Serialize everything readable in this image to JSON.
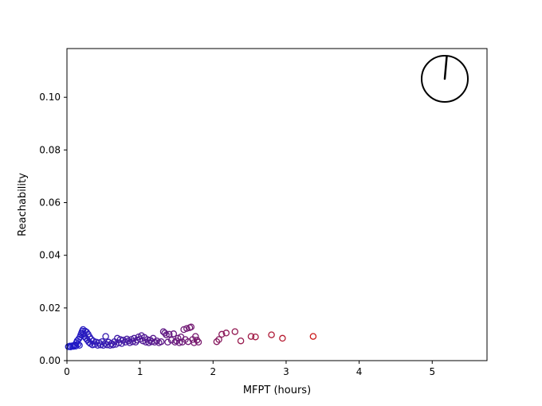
{
  "chart_data": {
    "type": "scatter",
    "title": "",
    "xlabel": "MFPT (hours)",
    "ylabel": "Reachability",
    "xlim": [
      0,
      5.75
    ],
    "ylim": [
      0,
      0.1185
    ],
    "x_ticks": [
      0,
      1,
      2,
      3,
      4,
      5
    ],
    "x_tick_labels": [
      "0",
      "1",
      "2",
      "3",
      "4",
      "5"
    ],
    "y_ticks": [
      0.0,
      0.02,
      0.04,
      0.06,
      0.08,
      0.1
    ],
    "y_tick_labels": [
      "0.00",
      "0.02",
      "0.04",
      "0.06",
      "0.08",
      "0.10"
    ],
    "grid": false,
    "legend": "none",
    "marker": "hollow-circle",
    "color_gradient": {
      "low": "#1a1acc",
      "high": "#cc1a1a",
      "mapped_to": "x"
    },
    "clock_inset": {
      "position": "top-right",
      "hand_angle_deg": 5
    },
    "points": [
      [
        0.02,
        0.0053
      ],
      [
        0.04,
        0.0055
      ],
      [
        0.05,
        0.0052
      ],
      [
        0.07,
        0.0056
      ],
      [
        0.09,
        0.0054
      ],
      [
        0.1,
        0.0058
      ],
      [
        0.11,
        0.006
      ],
      [
        0.12,
        0.0055
      ],
      [
        0.13,
        0.0068
      ],
      [
        0.14,
        0.0075
      ],
      [
        0.15,
        0.0062
      ],
      [
        0.16,
        0.0082
      ],
      [
        0.17,
        0.0058
      ],
      [
        0.18,
        0.009
      ],
      [
        0.19,
        0.0098
      ],
      [
        0.2,
        0.0105
      ],
      [
        0.21,
        0.0112
      ],
      [
        0.22,
        0.0118
      ],
      [
        0.23,
        0.01
      ],
      [
        0.24,
        0.0092
      ],
      [
        0.25,
        0.0112
      ],
      [
        0.26,
        0.0085
      ],
      [
        0.27,
        0.0108
      ],
      [
        0.28,
        0.0078
      ],
      [
        0.29,
        0.01
      ],
      [
        0.3,
        0.007
      ],
      [
        0.31,
        0.009
      ],
      [
        0.32,
        0.0065
      ],
      [
        0.33,
        0.0082
      ],
      [
        0.35,
        0.006
      ],
      [
        0.36,
        0.0075
      ],
      [
        0.38,
        0.0062
      ],
      [
        0.4,
        0.007
      ],
      [
        0.42,
        0.0058
      ],
      [
        0.44,
        0.0068
      ],
      [
        0.46,
        0.006
      ],
      [
        0.48,
        0.0072
      ],
      [
        0.5,
        0.0058
      ],
      [
        0.52,
        0.0065
      ],
      [
        0.53,
        0.0092
      ],
      [
        0.55,
        0.006
      ],
      [
        0.57,
        0.007
      ],
      [
        0.59,
        0.0058
      ],
      [
        0.61,
        0.0065
      ],
      [
        0.63,
        0.006
      ],
      [
        0.65,
        0.0072
      ],
      [
        0.67,
        0.0062
      ],
      [
        0.69,
        0.0085
      ],
      [
        0.71,
        0.0068
      ],
      [
        0.73,
        0.008
      ],
      [
        0.75,
        0.0065
      ],
      [
        0.77,
        0.0078
      ],
      [
        0.8,
        0.007
      ],
      [
        0.82,
        0.0082
      ],
      [
        0.84,
        0.0075
      ],
      [
        0.86,
        0.0068
      ],
      [
        0.88,
        0.008
      ],
      [
        0.9,
        0.0072
      ],
      [
        0.92,
        0.0085
      ],
      [
        0.94,
        0.007
      ],
      [
        0.96,
        0.0078
      ],
      [
        0.98,
        0.009
      ],
      [
        1.0,
        0.0082
      ],
      [
        1.02,
        0.0095
      ],
      [
        1.04,
        0.0075
      ],
      [
        1.06,
        0.0088
      ],
      [
        1.08,
        0.007
      ],
      [
        1.1,
        0.008
      ],
      [
        1.12,
        0.0068
      ],
      [
        1.14,
        0.0078
      ],
      [
        1.16,
        0.0072
      ],
      [
        1.18,
        0.0085
      ],
      [
        1.2,
        0.007
      ],
      [
        1.23,
        0.0075
      ],
      [
        1.26,
        0.0068
      ],
      [
        1.29,
        0.0072
      ],
      [
        1.32,
        0.011
      ],
      [
        1.34,
        0.0105
      ],
      [
        1.36,
        0.0098
      ],
      [
        1.38,
        0.007
      ],
      [
        1.4,
        0.01
      ],
      [
        1.43,
        0.0078
      ],
      [
        1.46,
        0.0102
      ],
      [
        1.48,
        0.007
      ],
      [
        1.5,
        0.0075
      ],
      [
        1.52,
        0.0085
      ],
      [
        1.54,
        0.0068
      ],
      [
        1.56,
        0.009
      ],
      [
        1.58,
        0.007
      ],
      [
        1.6,
        0.0118
      ],
      [
        1.62,
        0.008
      ],
      [
        1.64,
        0.0122
      ],
      [
        1.66,
        0.0072
      ],
      [
        1.68,
        0.0125
      ],
      [
        1.7,
        0.0128
      ],
      [
        1.72,
        0.008
      ],
      [
        1.74,
        0.0068
      ],
      [
        1.76,
        0.0092
      ],
      [
        1.78,
        0.0078
      ],
      [
        1.8,
        0.007
      ],
      [
        2.05,
        0.0072
      ],
      [
        2.08,
        0.008
      ],
      [
        2.12,
        0.01
      ],
      [
        2.18,
        0.0105
      ],
      [
        2.3,
        0.011
      ],
      [
        2.38,
        0.0075
      ],
      [
        2.52,
        0.0092
      ],
      [
        2.58,
        0.009
      ],
      [
        2.8,
        0.0098
      ],
      [
        2.95,
        0.0085
      ],
      [
        3.37,
        0.0092
      ]
    ]
  }
}
